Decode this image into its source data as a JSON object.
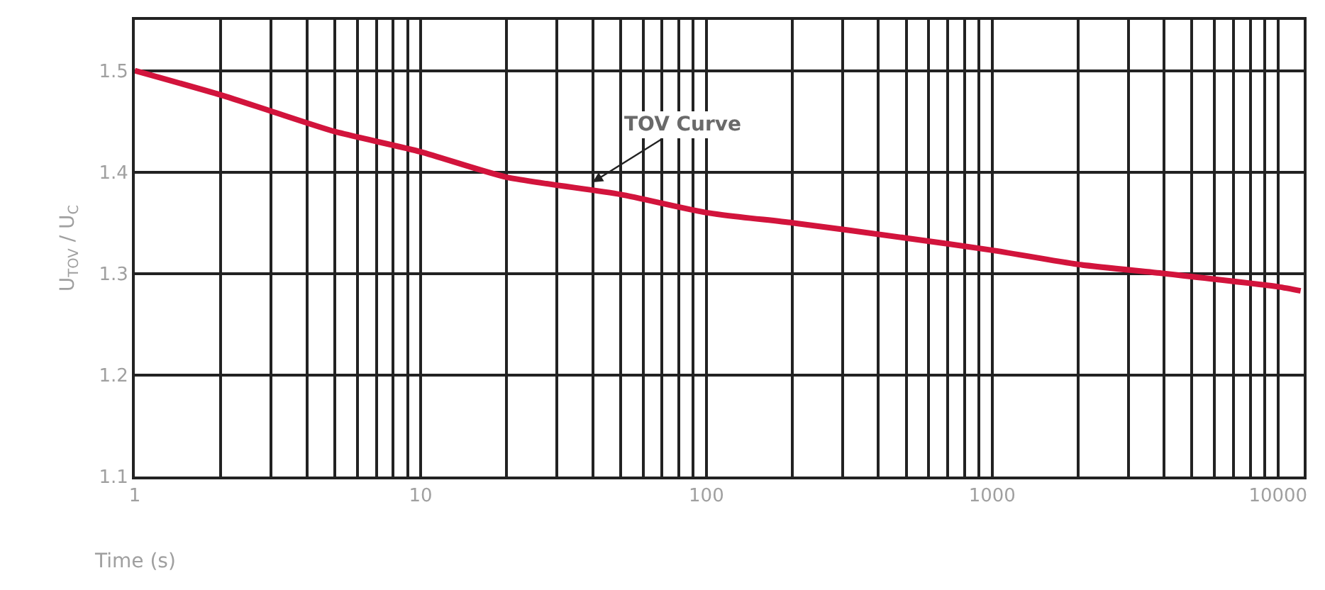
{
  "chart_data": {
    "type": "line",
    "xlabel": "Time (s)",
    "ylabel": "U$_{TOV}$ / U$_{C}$",
    "log": "x",
    "x": [
      1,
      2,
      3,
      5,
      10,
      20,
      50,
      100,
      200,
      500,
      1000,
      2000,
      4000,
      10000,
      12000
    ],
    "series": [
      {
        "color": "#d2143c",
        "values": [
          1.5,
          1.476,
          1.46,
          1.44,
          1.42,
          1.395,
          1.378,
          1.36,
          1.35,
          1.335,
          1.323,
          1.309,
          1.3,
          1.287,
          1.283
        ]
      }
    ],
    "xlim": [
      1,
      12300
    ],
    "xticks": [
      1,
      10,
      100,
      1000,
      10000
    ],
    "ylim": [
      1.1,
      1.55
    ],
    "yticks": [
      1.1,
      1.2,
      1.3,
      1.4,
      1.5
    ],
    "grid": true,
    "line_style": "solid",
    "marker": "none",
    "annotations": [
      {
        "text": "TOV Curve",
        "x": 40,
        "y": 1.39
      }
    ]
  }
}
